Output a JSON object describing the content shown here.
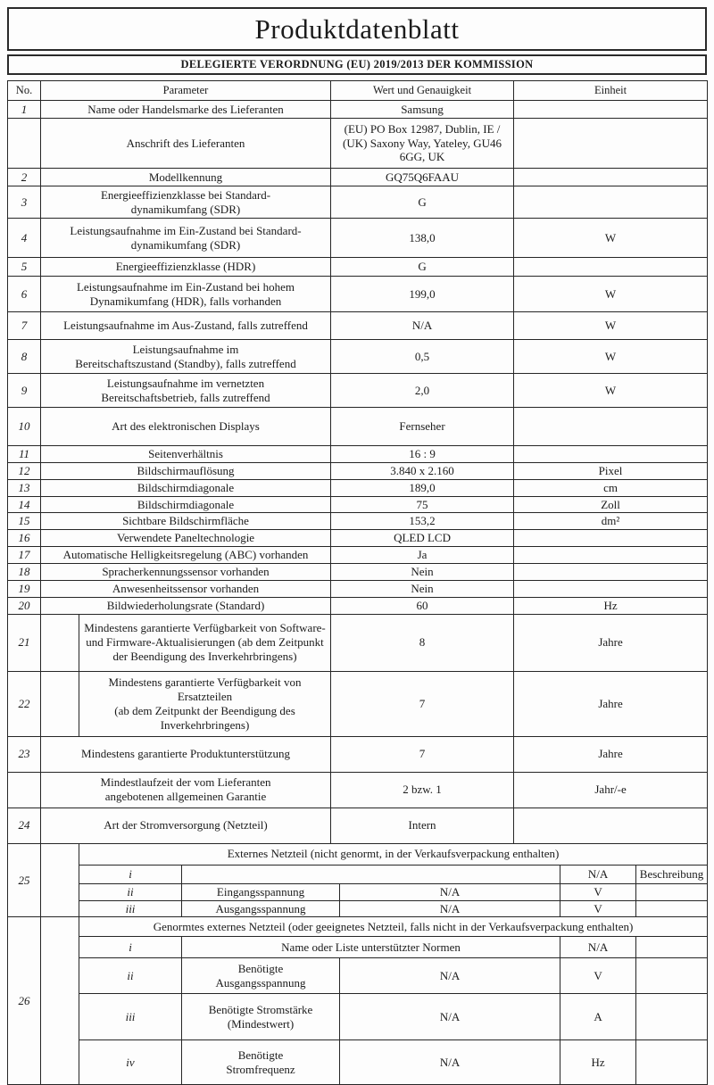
{
  "title": "Produktdatenblatt",
  "subtitle": "DELEGIERTE VERORDNUNG (EU) 2019/2013 DER KOMMISSION",
  "columns": {
    "no": "No.",
    "parameter": "Parameter",
    "value": "Wert und Genauigkeit",
    "unit": "Einheit"
  },
  "rows": [
    {
      "no": "1",
      "parameter": "Name oder Handelsmarke des Lieferanten",
      "value": "Samsung",
      "unit": "",
      "layout": "narrow"
    },
    {
      "no": "",
      "parameter": "Anschrift des Lieferanten",
      "value": "(EU) PO Box 12987, Dublin, IE /\n(UK) Saxony Way, Yateley, GU46\n6GG, UK",
      "unit": "",
      "layout": "narrow"
    },
    {
      "no": "2",
      "parameter": "Modellkennung",
      "value": "GQ75Q6FAAU",
      "unit": "",
      "layout": "narrow"
    },
    {
      "no": "3",
      "parameter": "Energieeffizienzklasse bei Standard-\ndynamikumfang (SDR)",
      "value": "G",
      "unit": "",
      "layout": "narrow"
    },
    {
      "no": "4",
      "parameter": "Leistungsaufnahme im Ein-Zustand bei Standard-\ndynamikumfang (SDR)",
      "value": "138,0",
      "unit": "W",
      "layout": "narrow"
    },
    {
      "no": "5",
      "parameter": "Energieeffizienzklasse (HDR)",
      "value": "G",
      "unit": "",
      "layout": "narrow"
    },
    {
      "no": "6",
      "parameter": "Leistungsaufnahme im Ein-Zustand bei hohem\nDynamikumfang (HDR), falls vorhanden",
      "value": "199,0",
      "unit": "W",
      "layout": "narrow"
    },
    {
      "no": "7",
      "parameter": "Leistungsaufnahme im Aus-Zustand, falls zutreffend",
      "value": "N/A",
      "unit": "W",
      "layout": "narrow"
    },
    {
      "no": "8",
      "parameter": "Leistungsaufnahme im\nBereitschaftszustand (Standby), falls zutreffend",
      "value": "0,5",
      "unit": "W",
      "layout": "narrow"
    },
    {
      "no": "9",
      "parameter": "Leistungsaufnahme im vernetzten\nBereitschaftsbetrieb, falls zutreffend",
      "value": "2,0",
      "unit": "W",
      "layout": "narrow"
    },
    {
      "no": "10",
      "parameter": "Art des elektronischen Displays",
      "value": "Fernseher",
      "unit": "",
      "layout": "narrow"
    },
    {
      "no": "11",
      "parameter": "Seitenverhältnis",
      "value": "16 : 9",
      "unit": "",
      "layout": "narrow"
    },
    {
      "no": "12",
      "parameter": "Bildschirmauflösung",
      "value": "3.840 x 2.160",
      "unit": "Pixel",
      "layout": "narrow"
    },
    {
      "no": "13",
      "parameter": "Bildschirmdiagonale",
      "value": "189,0",
      "unit": "cm",
      "layout": "narrow"
    },
    {
      "no": "14",
      "parameter": "Bildschirmdiagonale",
      "value": "75",
      "unit": "Zoll",
      "layout": "narrow"
    },
    {
      "no": "15",
      "parameter": "Sichtbare Bildschirmfläche",
      "value": "153,2",
      "unit": "dm²",
      "layout": "narrow"
    },
    {
      "no": "16",
      "parameter": "Verwendete Paneltechnologie",
      "value": "QLED LCD",
      "unit": "",
      "layout": "narrow"
    },
    {
      "no": "17",
      "parameter": "Automatische Helligkeitsregelung (ABC) vorhanden",
      "value": "Ja",
      "unit": "",
      "layout": "narrow"
    },
    {
      "no": "18",
      "parameter": "Spracherkennungssensor vorhanden",
      "value": "Nein",
      "unit": "",
      "layout": "narrow"
    },
    {
      "no": "19",
      "parameter": "Anwesenheitssensor vorhanden",
      "value": "Nein",
      "unit": "",
      "layout": "narrow"
    },
    {
      "no": "20",
      "parameter": "Bildwiederholungsrate (Standard)",
      "value": "60",
      "unit": "Hz",
      "layout": "narrow"
    },
    {
      "no": "21",
      "parameter": "Mindestens garantierte Verfügbarkeit von Software-\nund Firmware-Aktualisierungen (ab dem Zeitpunkt\nder Beendigung des Inverkehrbringens)",
      "value": "8",
      "unit": "Jahre",
      "layout": "wide"
    },
    {
      "no": "22",
      "parameter": "Mindestens garantierte Verfügbarkeit von Ersatzteilen\n(ab dem Zeitpunkt der Beendigung des\nInverkehrbringens)",
      "value": "7",
      "unit": "Jahre",
      "layout": "wide"
    },
    {
      "no": "23",
      "parameter": "Mindestens garantierte Produktunterstützung",
      "value": "7",
      "unit": "Jahre",
      "layout": "narrow"
    },
    {
      "no": "",
      "parameter": "Mindestlaufzeit der vom Lieferanten\nangebotenen allgemeinen Garantie",
      "value": "2 bzw. 1",
      "unit": "Jahr/-e",
      "layout": "narrow"
    },
    {
      "no": "24",
      "parameter": "Art der Stromversorgung (Netzteil)",
      "value": "Intern",
      "unit": "",
      "layout": "narrow"
    }
  ],
  "section25": {
    "no": "25",
    "header": "Externes Netzteil (nicht genormt, in der Verkaufsverpackung enthalten)",
    "rows": [
      {
        "idx": "i",
        "parameter": "",
        "value": "",
        "unit": "N/A",
        "description": "Beschreibung",
        "merged": true
      },
      {
        "idx": "ii",
        "parameter": "Eingangsspannung",
        "value": "N/A",
        "unit": "V",
        "description": "",
        "merged": false
      },
      {
        "idx": "iii",
        "parameter": "Ausgangsspannung",
        "value": "N/A",
        "unit": "V",
        "description": "",
        "merged": false
      }
    ]
  },
  "section26": {
    "no": "26",
    "header": "Genormtes externes Netzteil (oder geeignetes Netzteil, falls nicht in der Verkaufsverpackung enthalten)",
    "rows": [
      {
        "idx": "i",
        "parameter": "Name oder Liste unterstützter Normen",
        "value": "",
        "unit": "N/A",
        "description": "",
        "merged": true
      },
      {
        "idx": "ii",
        "parameter": "Benötigte\nAusgangsspannung",
        "value": "N/A",
        "unit": "V",
        "description": "",
        "merged": false
      },
      {
        "idx": "iii",
        "parameter": "Benötigte Stromstärke\n(Mindestwert)",
        "value": "N/A",
        "unit": "A",
        "description": "",
        "merged": false
      },
      {
        "idx": "iv",
        "parameter": "Benötigte\nStromfrequenz",
        "value": "N/A",
        "unit": "Hz",
        "description": "",
        "merged": false
      }
    ]
  }
}
